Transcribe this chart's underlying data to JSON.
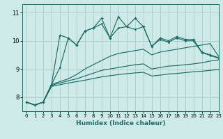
{
  "xlabel": "Humidex (Indice chaleur)",
  "xlim": [
    -0.5,
    23
  ],
  "ylim": [
    7.5,
    11.3
  ],
  "background_color": "#ceeae8",
  "grid_color": "#b0d0ce",
  "line_color": "#1a6e64",
  "xticks": [
    0,
    1,
    2,
    3,
    4,
    5,
    6,
    7,
    8,
    9,
    10,
    11,
    12,
    13,
    14,
    15,
    16,
    17,
    18,
    19,
    20,
    21,
    22,
    23
  ],
  "yticks": [
    8,
    9,
    10,
    11
  ],
  "line_jagged_plus_x": [
    0,
    1,
    2,
    3,
    4,
    5,
    6,
    7,
    8,
    9,
    10,
    11,
    12,
    13,
    14,
    15,
    16,
    17,
    18,
    19,
    20,
    21,
    22,
    23
  ],
  "line_jagged_plus_y": [
    7.82,
    7.72,
    7.82,
    8.45,
    10.2,
    10.1,
    9.85,
    10.35,
    10.45,
    10.8,
    10.1,
    10.85,
    10.5,
    10.8,
    10.5,
    9.8,
    10.1,
    10.0,
    10.15,
    10.05,
    10.05,
    9.6,
    9.5,
    9.4
  ],
  "line_jagged_dot_x": [
    0,
    1,
    2,
    3,
    4,
    5,
    6,
    7,
    8,
    9,
    10,
    11,
    12,
    13,
    14,
    15,
    16,
    17,
    18,
    19,
    20,
    21,
    22,
    23
  ],
  "line_jagged_dot_y": [
    7.82,
    7.72,
    7.82,
    8.45,
    9.05,
    10.1,
    9.85,
    10.35,
    10.45,
    10.6,
    10.1,
    10.45,
    10.5,
    10.4,
    10.5,
    9.8,
    10.05,
    9.95,
    10.1,
    10.0,
    10.0,
    9.58,
    9.48,
    9.38
  ],
  "line_top_smooth_x": [
    0,
    1,
    2,
    3,
    4,
    5,
    6,
    7,
    8,
    9,
    10,
    11,
    12,
    13,
    14,
    15,
    16,
    17,
    18,
    19,
    20,
    21,
    22,
    23
  ],
  "line_top_smooth_y": [
    7.82,
    7.72,
    7.82,
    8.45,
    8.55,
    8.65,
    8.8,
    9.0,
    9.15,
    9.3,
    9.45,
    9.55,
    9.6,
    9.65,
    9.7,
    9.5,
    9.6,
    9.65,
    9.7,
    9.75,
    9.8,
    9.85,
    9.9,
    9.45
  ],
  "line_mid_smooth_x": [
    0,
    1,
    2,
    3,
    4,
    5,
    6,
    7,
    8,
    9,
    10,
    11,
    12,
    13,
    14,
    15,
    16,
    17,
    18,
    19,
    20,
    21,
    22,
    23
  ],
  "line_mid_smooth_y": [
    7.82,
    7.72,
    7.82,
    8.42,
    8.5,
    8.58,
    8.65,
    8.75,
    8.85,
    8.95,
    9.0,
    9.05,
    9.1,
    9.15,
    9.18,
    9.0,
    9.05,
    9.1,
    9.12,
    9.15,
    9.18,
    9.22,
    9.28,
    9.32
  ],
  "line_bot_smooth_x": [
    0,
    1,
    2,
    3,
    4,
    5,
    6,
    7,
    8,
    9,
    10,
    11,
    12,
    13,
    14,
    15,
    16,
    17,
    18,
    19,
    20,
    21,
    22,
    23
  ],
  "line_bot_smooth_y": [
    7.82,
    7.72,
    7.82,
    8.38,
    8.44,
    8.5,
    8.55,
    8.6,
    8.66,
    8.72,
    8.76,
    8.8,
    8.83,
    8.86,
    8.88,
    8.75,
    8.78,
    8.82,
    8.84,
    8.87,
    8.9,
    8.92,
    8.95,
    8.98
  ]
}
